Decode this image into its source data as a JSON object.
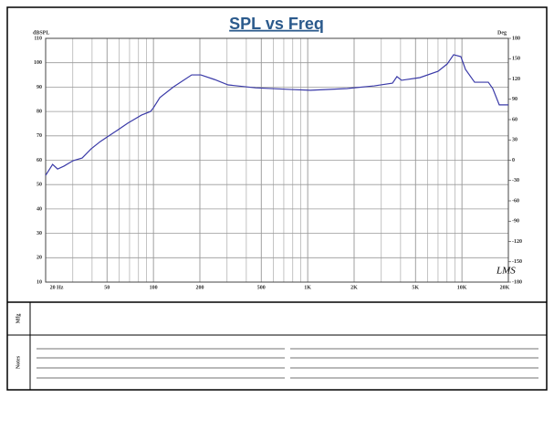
{
  "chart_data": {
    "type": "line",
    "title": "SPL vs Freq",
    "ylabel": "dBSPL",
    "y2label": "Deg",
    "annotation": "LMS",
    "log_x": true,
    "grid": true,
    "minor_grid": true,
    "xlim": [
      20,
      20000
    ],
    "xticks": [
      {
        "value": 20,
        "label": "20 Hz"
      },
      50,
      100,
      200,
      500,
      {
        "value": 1000,
        "label": "1K"
      },
      {
        "value": 2000,
        "label": "2K"
      },
      {
        "value": 5000,
        "label": "5K"
      },
      {
        "value": 10000,
        "label": "10K"
      },
      {
        "value": 20000,
        "label": "20K"
      }
    ],
    "ylim": [
      10,
      110
    ],
    "yticks": [
      10,
      20,
      30,
      40,
      50,
      60,
      70,
      80,
      90,
      100,
      110
    ],
    "y2lim": [
      -180,
      180
    ],
    "y2ticks": [
      -180,
      -150,
      -120,
      -90,
      -60,
      -30,
      0,
      30,
      60,
      90,
      120,
      150,
      180
    ],
    "x": [
      20,
      22.2,
      23.9,
      26.3,
      30.1,
      34.5,
      39.5,
      45.3,
      55.6,
      68.2,
      83.6,
      95.8,
      100,
      110,
      135,
      177,
      203,
      249,
      305,
      459,
      792,
      1040,
      1795,
      2700,
      3545,
      3790,
      4060,
      5340,
      7000,
      8030,
      8830,
      9840,
      10540,
      12080,
      14830,
      15850,
      17460,
      20000
    ],
    "series": [
      {
        "color": "#3a3aa8",
        "values": [
          53.8,
          58.3,
          56.4,
          57.6,
          59.8,
          60.9,
          64.7,
          67.7,
          71.4,
          75.2,
          78.5,
          80,
          81.5,
          85.7,
          90.1,
          95,
          95,
          93.1,
          90.9,
          89.7,
          89,
          88.7,
          89.4,
          90.5,
          91.6,
          94.3,
          92.8,
          93.9,
          96.5,
          99.5,
          103.3,
          102.5,
          97.3,
          92,
          92,
          89.4,
          82.7,
          82.7
        ]
      }
    ]
  },
  "footer": {
    "mfg_label": "Mfg",
    "notes_label": "Notes"
  }
}
